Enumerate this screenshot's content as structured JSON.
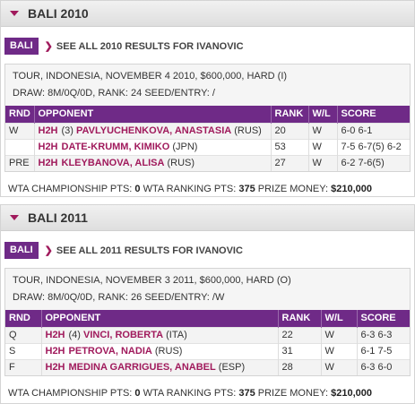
{
  "panels": [
    {
      "title": "BALI 2010",
      "tag": "BALI",
      "see_all": "SEE ALL 2010 RESULTS FOR IVANOVIC",
      "tour_line": "TOUR, INDONESIA, NOVEMBER 4 2010, $600,000, HARD (I)",
      "draw_line": "DRAW: 8M/0Q/0D, RANK: 24 SEED/ENTRY: /",
      "columns": [
        "RND",
        "OPPONENT",
        "RANK",
        "W/L",
        "SCORE"
      ],
      "rows": [
        {
          "rnd": "W",
          "h2h": "H2H",
          "seed": "(3)",
          "player": "PAVLYUCHENKOVA, ANASTASIA",
          "country": "(RUS)",
          "rank": "20",
          "wl": "W",
          "score": "6-0 6-1"
        },
        {
          "rnd": "",
          "h2h": "H2H",
          "seed": "",
          "player": "DATE-KRUMM, KIMIKO",
          "country": "(JPN)",
          "rank": "53",
          "wl": "W",
          "score": "7-5 6-7(5) 6-2"
        },
        {
          "rnd": "PRE",
          "h2h": "H2H",
          "seed": "",
          "player": "KLEYBANOVA, ALISA",
          "country": "(RUS)",
          "rank": "27",
          "wl": "W",
          "score": "6-2 7-6(5)"
        }
      ],
      "points": {
        "champ_label": "WTA CHAMPIONSHIP PTS:",
        "champ_value": "0",
        "rank_label": "WTA RANKING PTS:",
        "rank_value": "375",
        "money_label": "PRIZE MONEY:",
        "money_value": "$210,000"
      }
    },
    {
      "title": "BALI 2011",
      "tag": "BALI",
      "see_all": "SEE ALL 2011 RESULTS FOR IVANOVIC",
      "tour_line": "TOUR, INDONESIA, NOVEMBER 3 2011, $600,000, HARD (O)",
      "draw_line": "DRAW: 8M/0Q/0D, RANK: 26 SEED/ENTRY: /W",
      "columns": [
        "RND",
        "OPPONENT",
        "RANK",
        "W/L",
        "SCORE"
      ],
      "rows": [
        {
          "rnd": "Q",
          "h2h": "H2H",
          "seed": "(4)",
          "player": "VINCI, ROBERTA",
          "country": "(ITA)",
          "rank": "22",
          "wl": "W",
          "score": "6-3 6-3"
        },
        {
          "rnd": "S",
          "h2h": "H2H",
          "seed": "",
          "player": "PETROVA, NADIA",
          "country": "(RUS)",
          "rank": "31",
          "wl": "W",
          "score": "6-1 7-5"
        },
        {
          "rnd": "F",
          "h2h": "H2H",
          "seed": "",
          "player": "MEDINA GARRIGUES, ANABEL",
          "country": "(ESP)",
          "rank": "28",
          "wl": "W",
          "score": "6-3 6-0"
        }
      ],
      "points": {
        "champ_label": "WTA CHAMPIONSHIP PTS:",
        "champ_value": "0",
        "rank_label": "WTA RANKING PTS:",
        "rank_value": "375",
        "money_label": "PRIZE MONEY:",
        "money_value": "$210,000"
      }
    }
  ]
}
